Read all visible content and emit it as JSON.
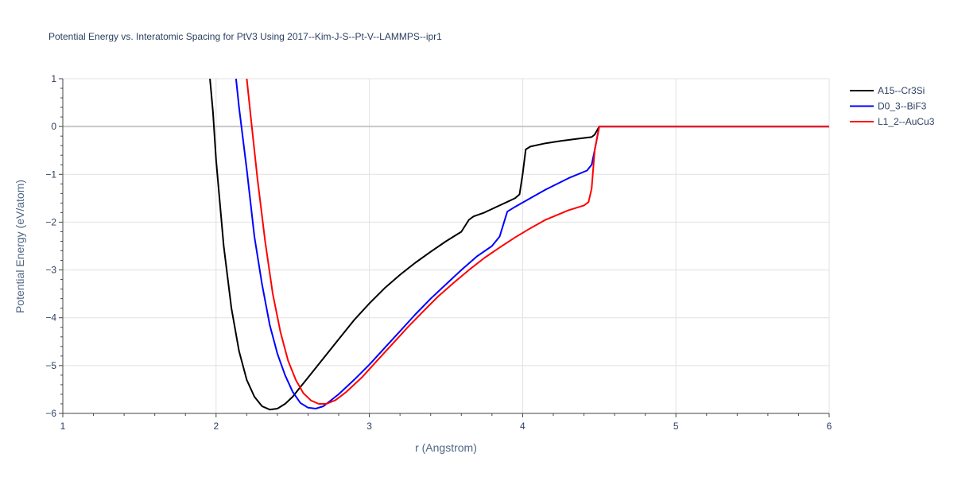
{
  "chart_data": {
    "type": "line",
    "title": "Potential Energy vs. Interatomic Spacing for PtV3 Using 2017--Kim-J-S--Pt-V--LAMMPS--ipr1",
    "xlabel": "r (Angstrom)",
    "ylabel": "Potential Energy (eV/atom)",
    "xlim": [
      1,
      6
    ],
    "ylim": [
      -6,
      1
    ],
    "xticks": [
      1,
      2,
      3,
      4,
      5,
      6
    ],
    "yticks": [
      1,
      0,
      -1,
      -2,
      -3,
      -4,
      -5,
      -6
    ],
    "ytick_labels": [
      "1",
      "0",
      "−1",
      "−2",
      "−3",
      "−4",
      "−5",
      "−6"
    ],
    "grid": true,
    "legend_position": "top-right",
    "series": [
      {
        "name": "A15--Cr3Si",
        "color": "#000000",
        "x": [
          1.96,
          1.98,
          2.0,
          2.05,
          2.1,
          2.15,
          2.2,
          2.25,
          2.3,
          2.35,
          2.4,
          2.45,
          2.5,
          2.55,
          2.6,
          2.7,
          2.8,
          2.9,
          3.0,
          3.1,
          3.2,
          3.3,
          3.4,
          3.5,
          3.6,
          3.65,
          3.68,
          3.75,
          3.85,
          3.95,
          3.98,
          4.0,
          4.02,
          4.05,
          4.15,
          4.25,
          4.35,
          4.45,
          4.47,
          4.5,
          4.6,
          5.0,
          5.5,
          6.0
        ],
        "y": [
          1.0,
          0.3,
          -0.7,
          -2.5,
          -3.8,
          -4.7,
          -5.3,
          -5.65,
          -5.85,
          -5.92,
          -5.9,
          -5.8,
          -5.65,
          -5.45,
          -5.25,
          -4.85,
          -4.45,
          -4.05,
          -3.7,
          -3.38,
          -3.1,
          -2.85,
          -2.62,
          -2.4,
          -2.2,
          -1.95,
          -1.88,
          -1.8,
          -1.65,
          -1.5,
          -1.42,
          -1.0,
          -0.48,
          -0.42,
          -0.35,
          -0.3,
          -0.26,
          -0.22,
          -0.17,
          0.0,
          0.0,
          0.0,
          0.0,
          0.0
        ]
      },
      {
        "name": "D0_3--BiF3",
        "color": "#0000ff",
        "x": [
          2.13,
          2.15,
          2.2,
          2.25,
          2.3,
          2.35,
          2.4,
          2.45,
          2.5,
          2.55,
          2.6,
          2.65,
          2.7,
          2.8,
          2.9,
          3.0,
          3.1,
          3.2,
          3.3,
          3.4,
          3.5,
          3.6,
          3.7,
          3.8,
          3.85,
          3.9,
          3.95,
          4.05,
          4.15,
          4.3,
          4.42,
          4.45,
          4.47,
          4.5,
          4.6,
          5.0,
          5.5,
          6.0
        ],
        "y": [
          1.0,
          0.4,
          -0.9,
          -2.3,
          -3.3,
          -4.15,
          -4.75,
          -5.2,
          -5.55,
          -5.78,
          -5.88,
          -5.9,
          -5.85,
          -5.6,
          -5.3,
          -4.98,
          -4.63,
          -4.28,
          -3.93,
          -3.6,
          -3.3,
          -3.0,
          -2.72,
          -2.5,
          -2.3,
          -1.78,
          -1.68,
          -1.5,
          -1.32,
          -1.08,
          -0.92,
          -0.8,
          -0.5,
          0.0,
          0.0,
          0.0,
          0.0,
          0.0
        ]
      },
      {
        "name": "L1_2--AuCu3",
        "color": "#ff0000",
        "x": [
          2.2,
          2.23,
          2.27,
          2.32,
          2.37,
          2.42,
          2.47,
          2.52,
          2.57,
          2.62,
          2.67,
          2.72,
          2.78,
          2.85,
          2.95,
          3.05,
          3.15,
          3.25,
          3.35,
          3.45,
          3.55,
          3.65,
          3.75,
          3.85,
          3.95,
          4.05,
          4.15,
          4.3,
          4.4,
          4.43,
          4.45,
          4.47,
          4.5,
          4.6,
          5.0,
          5.5,
          6.0
        ],
        "y": [
          1.0,
          0.1,
          -1.1,
          -2.4,
          -3.5,
          -4.3,
          -4.9,
          -5.3,
          -5.58,
          -5.73,
          -5.8,
          -5.8,
          -5.72,
          -5.55,
          -5.25,
          -4.9,
          -4.55,
          -4.2,
          -3.87,
          -3.55,
          -3.27,
          -3.0,
          -2.75,
          -2.53,
          -2.32,
          -2.13,
          -1.95,
          -1.75,
          -1.65,
          -1.58,
          -1.3,
          -0.5,
          0.0,
          0.0,
          0.0,
          0.0,
          0.0
        ]
      }
    ]
  }
}
